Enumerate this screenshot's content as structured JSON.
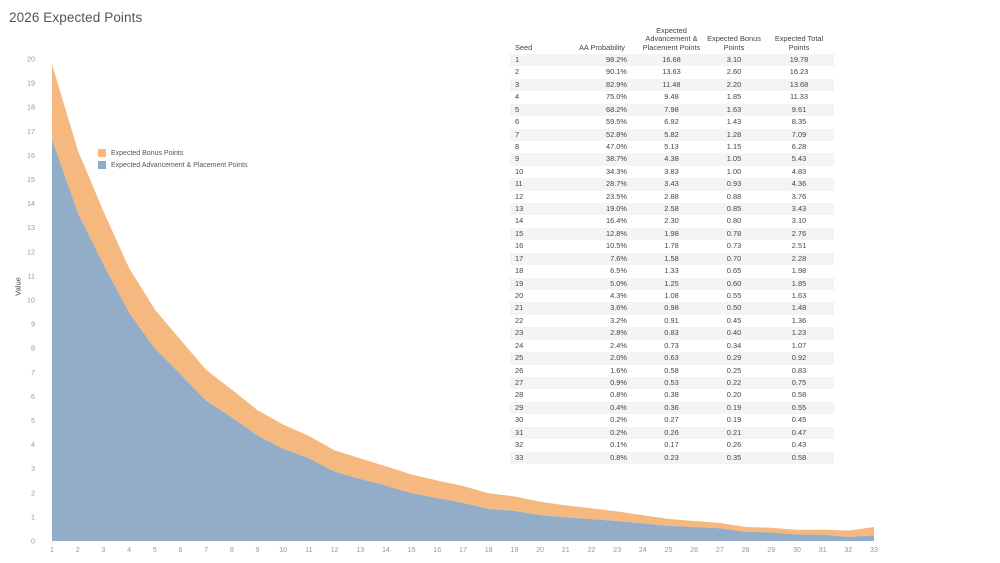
{
  "page_title": "2026 Expected Points",
  "colors": {
    "bonus": "#f5b97f",
    "advancement": "#93adc9",
    "axis_text": "#999999",
    "title_text": "#555555"
  },
  "legend": {
    "bonus_label": "Expected Bonus Points",
    "advancement_label": "Expected Advancement & Placement Points"
  },
  "table": {
    "headers": {
      "seed": "Seed",
      "aa_probability": "AA Probability",
      "advancement": "Expected Advancement & Placement Points",
      "bonus": "Expected Bonus Points",
      "total": "Expected Total Points"
    },
    "rows": [
      {
        "seed": "1",
        "aa": "98.2%",
        "adv": "16.68",
        "bonus": "3.10",
        "total": "19.78"
      },
      {
        "seed": "2",
        "aa": "90.1%",
        "adv": "13.63",
        "bonus": "2.60",
        "total": "16.23"
      },
      {
        "seed": "3",
        "aa": "82.9%",
        "adv": "11.48",
        "bonus": "2.20",
        "total": "13.68"
      },
      {
        "seed": "4",
        "aa": "75.0%",
        "adv": "9.48",
        "bonus": "1.85",
        "total": "11.33"
      },
      {
        "seed": "5",
        "aa": "68.2%",
        "adv": "7.98",
        "bonus": "1.63",
        "total": "9.61"
      },
      {
        "seed": "6",
        "aa": "59.5%",
        "adv": "6.92",
        "bonus": "1.43",
        "total": "8.35"
      },
      {
        "seed": "7",
        "aa": "52.8%",
        "adv": "5.82",
        "bonus": "1.28",
        "total": "7.09"
      },
      {
        "seed": "8",
        "aa": "47.0%",
        "adv": "5.13",
        "bonus": "1.15",
        "total": "6.28"
      },
      {
        "seed": "9",
        "aa": "38.7%",
        "adv": "4.38",
        "bonus": "1.05",
        "total": "5.43"
      },
      {
        "seed": "10",
        "aa": "34.3%",
        "adv": "3.83",
        "bonus": "1.00",
        "total": "4.83"
      },
      {
        "seed": "11",
        "aa": "28.7%",
        "adv": "3.43",
        "bonus": "0.93",
        "total": "4.36"
      },
      {
        "seed": "12",
        "aa": "23.5%",
        "adv": "2.88",
        "bonus": "0.88",
        "total": "3.76"
      },
      {
        "seed": "13",
        "aa": "19.0%",
        "adv": "2.58",
        "bonus": "0.85",
        "total": "3.43"
      },
      {
        "seed": "14",
        "aa": "16.4%",
        "adv": "2.30",
        "bonus": "0.80",
        "total": "3.10"
      },
      {
        "seed": "15",
        "aa": "12.8%",
        "adv": "1.98",
        "bonus": "0.78",
        "total": "2.76"
      },
      {
        "seed": "16",
        "aa": "10.5%",
        "adv": "1.78",
        "bonus": "0.73",
        "total": "2.51"
      },
      {
        "seed": "17",
        "aa": "7.6%",
        "adv": "1.58",
        "bonus": "0.70",
        "total": "2.28"
      },
      {
        "seed": "18",
        "aa": "6.5%",
        "adv": "1.33",
        "bonus": "0.65",
        "total": "1.98"
      },
      {
        "seed": "19",
        "aa": "5.0%",
        "adv": "1.25",
        "bonus": "0.60",
        "total": "1.85"
      },
      {
        "seed": "20",
        "aa": "4.3%",
        "adv": "1.08",
        "bonus": "0.55",
        "total": "1.63"
      },
      {
        "seed": "21",
        "aa": "3.6%",
        "adv": "0.98",
        "bonus": "0.50",
        "total": "1.48"
      },
      {
        "seed": "22",
        "aa": "3.2%",
        "adv": "0.91",
        "bonus": "0.45",
        "total": "1.36"
      },
      {
        "seed": "23",
        "aa": "2.8%",
        "adv": "0.83",
        "bonus": "0.40",
        "total": "1.23"
      },
      {
        "seed": "24",
        "aa": "2.4%",
        "adv": "0.73",
        "bonus": "0.34",
        "total": "1.07"
      },
      {
        "seed": "25",
        "aa": "2.0%",
        "adv": "0.63",
        "bonus": "0.29",
        "total": "0.92"
      },
      {
        "seed": "26",
        "aa": "1.6%",
        "adv": "0.58",
        "bonus": "0.25",
        "total": "0.83"
      },
      {
        "seed": "27",
        "aa": "0.9%",
        "adv": "0.53",
        "bonus": "0.22",
        "total": "0.75"
      },
      {
        "seed": "28",
        "aa": "0.8%",
        "adv": "0.38",
        "bonus": "0.20",
        "total": "0.58"
      },
      {
        "seed": "29",
        "aa": "0.4%",
        "adv": "0.36",
        "bonus": "0.19",
        "total": "0.55"
      },
      {
        "seed": "30",
        "aa": "0.2%",
        "adv": "0.27",
        "bonus": "0.19",
        "total": "0.45"
      },
      {
        "seed": "31",
        "aa": "0.2%",
        "adv": "0.26",
        "bonus": "0.21",
        "total": "0.47"
      },
      {
        "seed": "32",
        "aa": "0.1%",
        "adv": "0.17",
        "bonus": "0.26",
        "total": "0.43"
      },
      {
        "seed": "33",
        "aa": "0.8%",
        "adv": "0.23",
        "bonus": "0.35",
        "total": "0.58"
      }
    ]
  },
  "chart_data": {
    "type": "area",
    "stacked": true,
    "ylabel": "Value",
    "xlabel": "",
    "ylim": [
      0,
      20
    ],
    "xlim": [
      1,
      33
    ],
    "yticks": [
      0,
      1,
      2,
      3,
      4,
      5,
      6,
      7,
      8,
      9,
      10,
      11,
      12,
      13,
      14,
      15,
      16,
      17,
      18,
      19,
      20
    ],
    "x": [
      1,
      2,
      3,
      4,
      5,
      6,
      7,
      8,
      9,
      10,
      11,
      12,
      13,
      14,
      15,
      16,
      17,
      18,
      19,
      20,
      21,
      22,
      23,
      24,
      25,
      26,
      27,
      28,
      29,
      30,
      31,
      32,
      33
    ],
    "grid": false,
    "legend_position": "upper-left inside plot",
    "series": [
      {
        "name": "Expected Advancement & Placement Points",
        "color": "#93adc9",
        "values": [
          16.68,
          13.63,
          11.48,
          9.48,
          7.98,
          6.92,
          5.82,
          5.13,
          4.38,
          3.83,
          3.43,
          2.88,
          2.58,
          2.3,
          1.98,
          1.78,
          1.58,
          1.33,
          1.25,
          1.08,
          0.98,
          0.91,
          0.83,
          0.73,
          0.63,
          0.58,
          0.53,
          0.38,
          0.36,
          0.27,
          0.26,
          0.17,
          0.23
        ]
      },
      {
        "name": "Expected Bonus Points",
        "color": "#f5b97f",
        "values": [
          3.1,
          2.6,
          2.2,
          1.85,
          1.63,
          1.43,
          1.28,
          1.15,
          1.05,
          1.0,
          0.93,
          0.88,
          0.85,
          0.8,
          0.78,
          0.73,
          0.7,
          0.65,
          0.6,
          0.55,
          0.5,
          0.45,
          0.4,
          0.34,
          0.29,
          0.25,
          0.22,
          0.2,
          0.19,
          0.19,
          0.21,
          0.26,
          0.35
        ]
      }
    ]
  }
}
